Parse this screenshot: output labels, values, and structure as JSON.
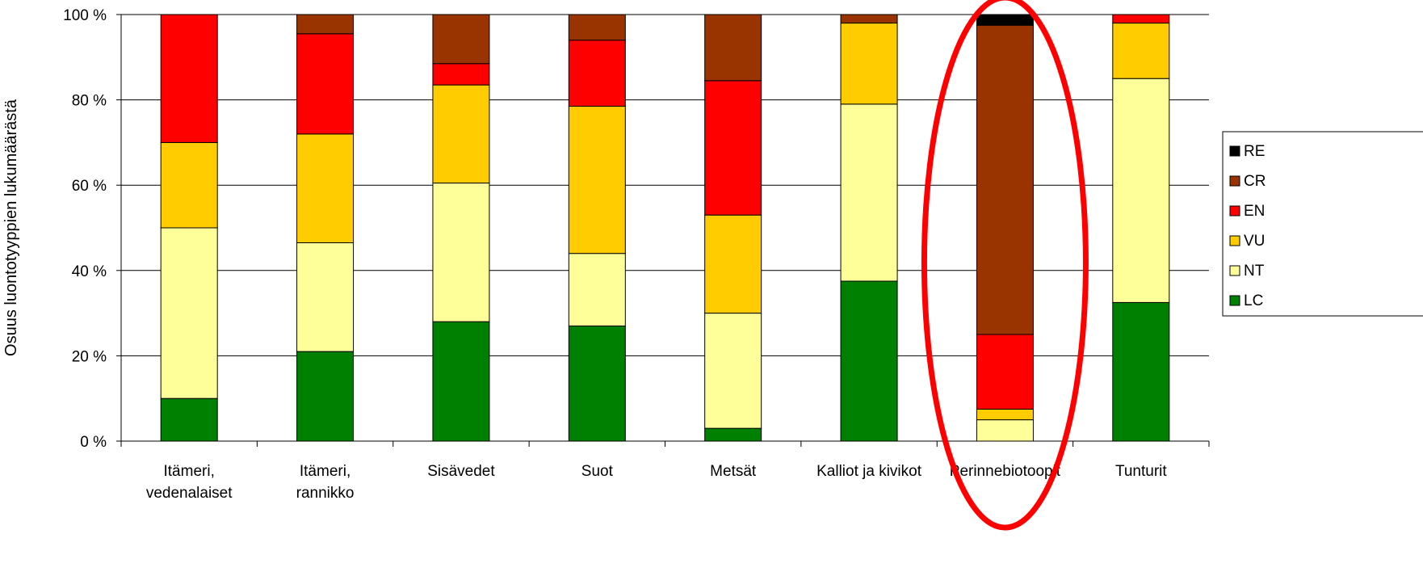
{
  "chart_data": {
    "type": "bar",
    "stacked": true,
    "percent": true,
    "title": "",
    "xlabel": "",
    "ylabel": "Osuus luontotyyppien lukumäärästä",
    "ylim": [
      0,
      100
    ],
    "yticks": [
      "0 %",
      "20 %",
      "40 %",
      "60 %",
      "80 %",
      "100 %"
    ],
    "grid": true,
    "legend_position": "right",
    "categories": [
      [
        "Itämeri,",
        "vedenalaiset"
      ],
      [
        "Itämeri,",
        "rannikko"
      ],
      [
        "Sisävedet"
      ],
      [
        "Suot"
      ],
      [
        "Metsät"
      ],
      [
        "Kalliot ja kivikot"
      ],
      [
        "Perinnebiotoopit"
      ],
      [
        "Tunturit"
      ]
    ],
    "series": [
      {
        "name": "LC",
        "color": "#008000",
        "values": [
          10,
          21,
          28,
          27,
          3,
          37.5,
          0,
          32.5
        ]
      },
      {
        "name": "NT",
        "color": "#FFFF99",
        "values": [
          40,
          25.5,
          32.5,
          17,
          27,
          41.5,
          5,
          52.5
        ]
      },
      {
        "name": "VU",
        "color": "#FFCC00",
        "values": [
          20,
          25.5,
          23,
          34.5,
          23,
          19,
          2.5,
          13
        ]
      },
      {
        "name": "EN",
        "color": "#FF0000",
        "values": [
          30,
          23.5,
          5,
          15.5,
          31.5,
          0,
          17.5,
          2
        ]
      },
      {
        "name": "CR",
        "color": "#993300",
        "values": [
          0,
          4.5,
          11.5,
          6,
          15.5,
          2,
          72.5,
          0
        ]
      },
      {
        "name": "RE",
        "color": "#000000",
        "values": [
          0,
          0,
          0,
          0,
          0,
          0,
          2.5,
          0
        ]
      }
    ],
    "legend_order": [
      "RE",
      "CR",
      "EN",
      "VU",
      "NT",
      "LC"
    ],
    "annotation": {
      "type": "ellipse",
      "target_category": 6,
      "color": "#FF0000"
    }
  }
}
